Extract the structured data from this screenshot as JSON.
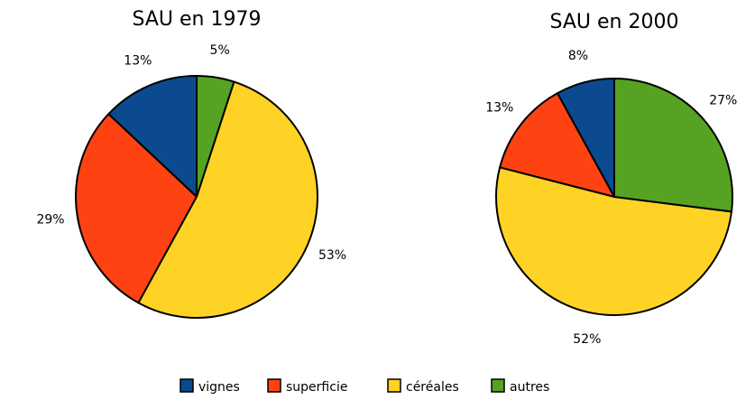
{
  "chart_data": [
    {
      "type": "pie",
      "title": "SAU en 1979",
      "categories": [
        "vignes",
        "superficie",
        "céréales",
        "autres"
      ],
      "values": [
        13,
        29,
        53,
        5
      ],
      "value_labels": [
        "13%",
        "29%",
        "53%",
        "5%"
      ],
      "colors": [
        "#0b4a8e",
        "#ff4212",
        "#ffd325",
        "#56a222"
      ]
    },
    {
      "type": "pie",
      "title": "SAU en 2000",
      "categories": [
        "vignes",
        "superficie",
        "céréales",
        "autres"
      ],
      "values": [
        8,
        13,
        52,
        27
      ],
      "value_labels": [
        "8%",
        "13%",
        "52%",
        "27%"
      ],
      "colors": [
        "#0b4a8e",
        "#ff4212",
        "#ffd325",
        "#56a222"
      ]
    }
  ]
}
